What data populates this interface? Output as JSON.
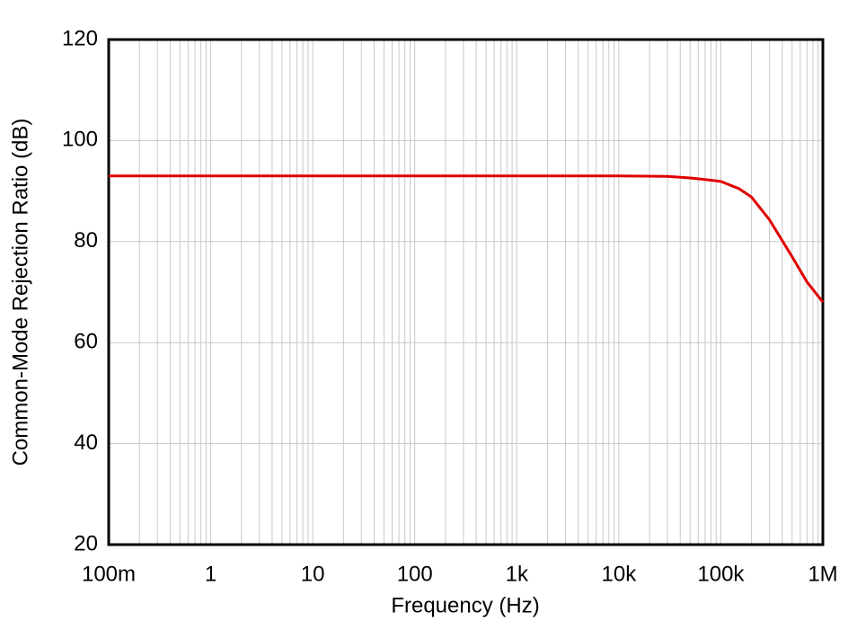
{
  "chart_data": {
    "type": "line",
    "log_x": true,
    "grid": true,
    "minor_grid": true,
    "x_label": "Frequency (Hz)",
    "y_label": "Common-Mode Rejection Ratio (dB)",
    "x": [
      0.1,
      1,
      10,
      100,
      1000,
      10000,
      30000,
      50000,
      70000,
      100000,
      150000,
      200000,
      300000,
      500000,
      700000,
      1000000
    ],
    "series": [
      {
        "color": "#e00000",
        "values": [
          93,
          93,
          93,
          93,
          93,
          93,
          92.9,
          92.6,
          92.3,
          91.9,
          90.5,
          88.8,
          84.3,
          77,
          72,
          68
        ]
      }
    ],
    "xlim": [
      0.1,
      1000000
    ],
    "xticks": [
      {
        "value": 0.1,
        "label": "100m"
      },
      1,
      10,
      100,
      {
        "value": 1000,
        "label": "1k"
      },
      {
        "value": 10000,
        "label": "10k"
      },
      {
        "value": 100000,
        "label": "100k"
      },
      {
        "value": 1000000,
        "label": "1M"
      }
    ],
    "ylim": [
      20,
      120
    ],
    "yticks": [
      20,
      40,
      60,
      80,
      100,
      120
    ]
  }
}
